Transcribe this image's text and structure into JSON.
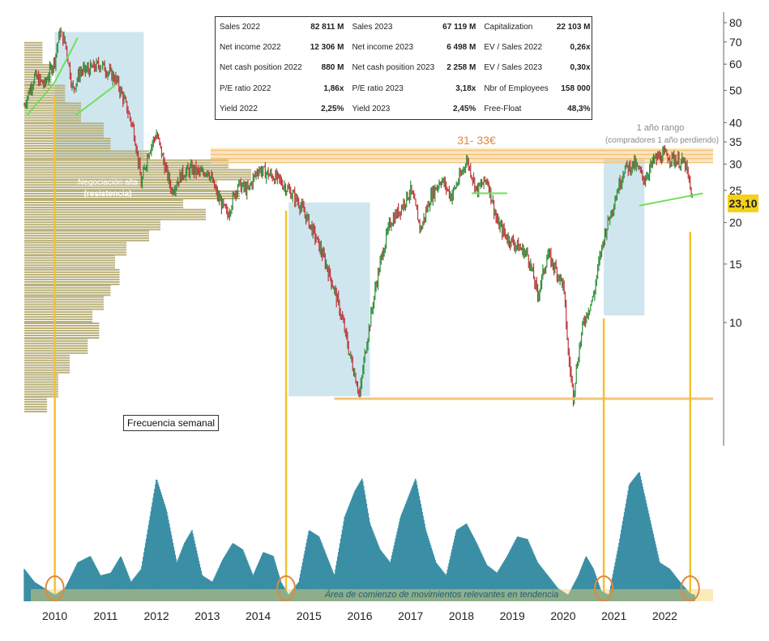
{
  "stats_table": {
    "rows": [
      [
        {
          "label": "Sales 2022",
          "value": "82 811 M"
        },
        {
          "label": "Sales 2023",
          "value": "67 119 M"
        },
        {
          "label": "Capitalization",
          "value": "22 103 M"
        }
      ],
      [
        {
          "label": "Net income 2022",
          "value": "12 306 M"
        },
        {
          "label": "Net income 2023",
          "value": "6 498 M"
        },
        {
          "label": "EV / Sales 2022",
          "value": "0,26x"
        }
      ],
      [
        {
          "label": "Net cash position 2022",
          "value": "880 M"
        },
        {
          "label": "Net cash position 2023",
          "value": "2 258 M"
        },
        {
          "label": "EV / Sales 2023",
          "value": "0,30x"
        }
      ],
      [
        {
          "label": "P/E ratio 2022",
          "value": "1,86x"
        },
        {
          "label": "P/E ratio 2023",
          "value": "3,18x"
        },
        {
          "label": "Nbr of Employees",
          "value": "158 000"
        }
      ],
      [
        {
          "label": "Yield 2022",
          "value": "2,25%"
        },
        {
          "label": "Yield 2023",
          "value": "2,45%"
        },
        {
          "label": "Free-Float",
          "value": "48,3%"
        }
      ]
    ]
  },
  "annotations": {
    "resistance_zone": "31- 33€",
    "one_year_range_title": "1 año rango",
    "one_year_range_sub": "(compradores 1 año perdiendo)",
    "high_volume_label": "Negociación alta",
    "high_volume_sub": "(resistencia)",
    "frequency_label": "Frecuencia semanal",
    "trend_area_label": "Área de comienzo de movimientos relevantes en tendencia",
    "current_price": "23,10"
  },
  "colors": {
    "candle_up": "#2f8f3a",
    "candle_down": "#c0353a",
    "volume_profile": "#b9b07a",
    "highlight_zone": "#cfe6ef",
    "oscillator": "#3a8fa5",
    "vertical_lines": "#f2c230",
    "resistance_band": "#f4c37a",
    "price_tag": "#f5d21a",
    "trend_lines": "#6fe05a"
  },
  "chart_data": [
    {
      "type": "line",
      "title": "",
      "y_scale": "log",
      "ylim": [
        5,
        85
      ],
      "y_ticks": [
        80,
        70,
        60,
        50,
        40,
        35,
        30,
        25,
        20,
        15,
        10
      ],
      "y_tick_labels": [
        "80",
        "70",
        "60",
        "50",
        "40",
        "35",
        "30",
        "25",
        "20",
        "15",
        "10"
      ],
      "x_ticks": [
        "2010",
        "2011",
        "2012",
        "2013",
        "2014",
        "2015",
        "2016",
        "2017",
        "2018",
        "2019",
        "2020",
        "2021",
        "2022"
      ],
      "xlim": [
        2009.4,
        2022.95
      ],
      "series": [
        {
          "x": [
            2009.4,
            2009.6,
            2009.8,
            2010.0,
            2010.1,
            2010.2,
            2010.35,
            2010.5,
            2010.7,
            2010.9,
            2011.0,
            2011.2,
            2011.4,
            2011.55,
            2011.7,
            2011.85,
            2012.0,
            2012.15,
            2012.3,
            2012.5,
            2012.7,
            2012.9,
            2013.0,
            2013.2,
            2013.4,
            2013.6,
            2013.8,
            2014.0,
            2014.2,
            2014.4,
            2014.6,
            2014.8,
            2015.0,
            2015.2,
            2015.4,
            2015.6,
            2015.8,
            2016.0,
            2016.05,
            2016.2,
            2016.4,
            2016.6,
            2016.8,
            2017.0,
            2017.2,
            2017.4,
            2017.6,
            2017.8,
            2018.0,
            2018.1,
            2018.3,
            2018.5,
            2018.7,
            2018.9,
            2019.1,
            2019.3,
            2019.5,
            2019.7,
            2019.9,
            2020.0,
            2020.1,
            2020.2,
            2020.4,
            2020.6,
            2020.8,
            2021.0,
            2021.2,
            2021.4,
            2021.6,
            2021.8,
            2022.0,
            2022.2,
            2022.4,
            2022.55
          ],
          "values": [
            45,
            55,
            52,
            62,
            75,
            70,
            50,
            57,
            58,
            60,
            58,
            54,
            45,
            38,
            26,
            33,
            37,
            30,
            25,
            28,
            29,
            28,
            29,
            24,
            21,
            26,
            25,
            29,
            28,
            27,
            25,
            23,
            20,
            17,
            14,
            11,
            8,
            6,
            7,
            10,
            15,
            20,
            22,
            25,
            19,
            24,
            27,
            24,
            28,
            31,
            25,
            27,
            20,
            18,
            17,
            16,
            12,
            16,
            14,
            13,
            8,
            6,
            10,
            12,
            18,
            23,
            29,
            30,
            27,
            31,
            32,
            31,
            30,
            23.1
          ]
        }
      ]
    },
    {
      "type": "area",
      "title": "",
      "x_ticks": [
        "2010",
        "2011",
        "2012",
        "2013",
        "2014",
        "2015",
        "2016",
        "2017",
        "2018",
        "2019",
        "2020",
        "2021",
        "2022"
      ],
      "ylim": [
        0,
        1
      ],
      "x": [
        2009.4,
        2009.6,
        2009.8,
        2010.0,
        2010.2,
        2010.45,
        2010.7,
        2010.9,
        2011.1,
        2011.3,
        2011.5,
        2011.7,
        2011.85,
        2012.0,
        2012.2,
        2012.4,
        2012.55,
        2012.7,
        2012.9,
        2013.1,
        2013.3,
        2013.5,
        2013.7,
        2013.9,
        2014.1,
        2014.3,
        2014.45,
        2014.6,
        2014.8,
        2015.0,
        2015.2,
        2015.4,
        2015.5,
        2015.7,
        2015.9,
        2016.05,
        2016.2,
        2016.4,
        2016.6,
        2016.8,
        2016.95,
        2017.1,
        2017.3,
        2017.5,
        2017.7,
        2017.9,
        2018.1,
        2018.3,
        2018.5,
        2018.7,
        2018.9,
        2019.1,
        2019.3,
        2019.5,
        2019.7,
        2019.9,
        2020.1,
        2020.3,
        2020.45,
        2020.6,
        2020.75,
        2020.9,
        2021.1,
        2021.3,
        2021.5,
        2021.7,
        2021.9,
        2022.1,
        2022.3,
        2022.5,
        2022.6
      ],
      "values": [
        0.25,
        0.15,
        0.1,
        0.05,
        0.1,
        0.3,
        0.35,
        0.2,
        0.22,
        0.35,
        0.15,
        0.25,
        0.6,
        0.95,
        0.7,
        0.3,
        0.45,
        0.55,
        0.2,
        0.15,
        0.32,
        0.45,
        0.4,
        0.2,
        0.38,
        0.35,
        0.15,
        0.05,
        0.15,
        0.55,
        0.5,
        0.3,
        0.2,
        0.65,
        0.85,
        0.95,
        0.6,
        0.4,
        0.3,
        0.65,
        0.8,
        0.95,
        0.55,
        0.3,
        0.2,
        0.55,
        0.6,
        0.45,
        0.28,
        0.22,
        0.35,
        0.5,
        0.48,
        0.3,
        0.2,
        0.1,
        0.05,
        0.2,
        0.35,
        0.25,
        0.08,
        0.05,
        0.45,
        0.9,
        1.0,
        0.65,
        0.3,
        0.25,
        0.15,
        0.06,
        0.05
      ]
    }
  ]
}
